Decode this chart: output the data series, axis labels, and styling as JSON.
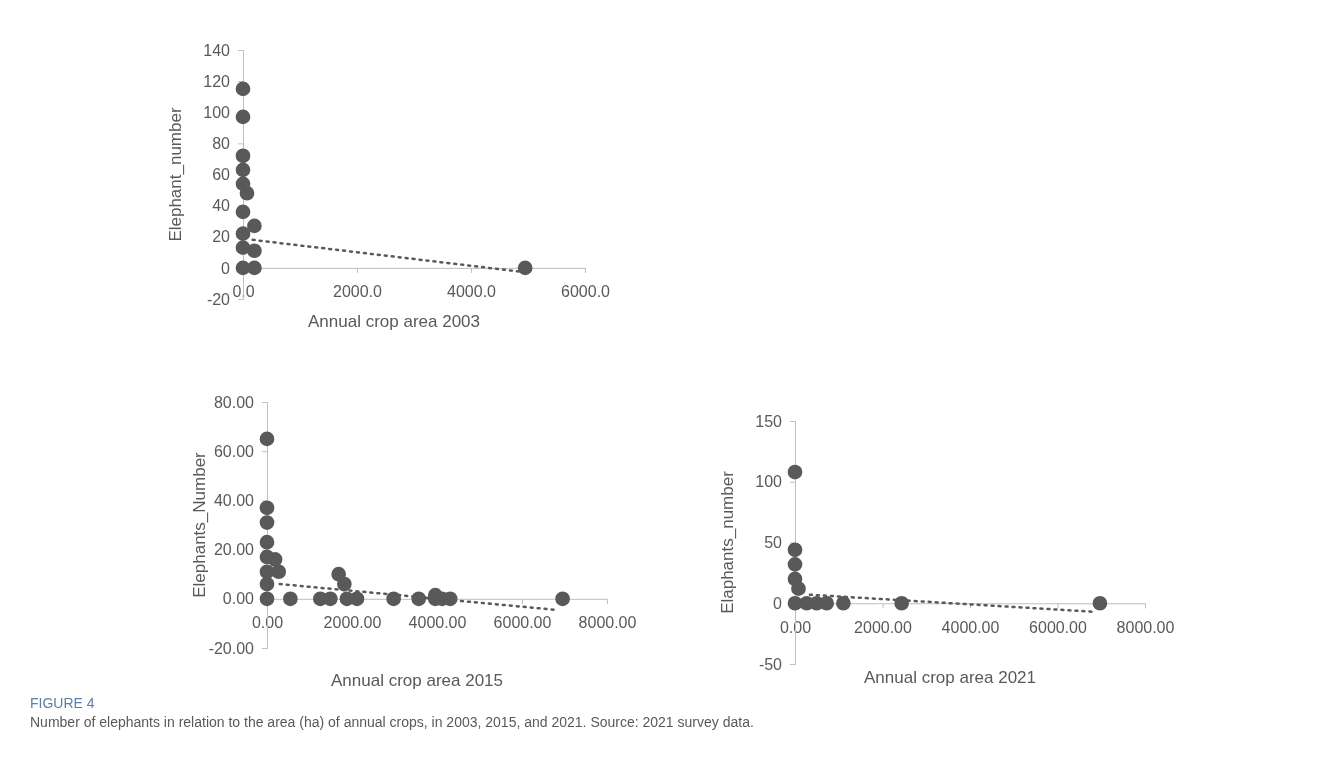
{
  "chart_data": [
    {
      "type": "scatter",
      "xlabel": "Annual crop area 2003",
      "ylabel": "Elephant_number",
      "xlim": [
        0,
        6000
      ],
      "ylim": [
        -20,
        140
      ],
      "xticks": [
        {
          "value": 0,
          "label": "0.0"
        },
        {
          "value": 2000,
          "label": "2000.0"
        },
        {
          "value": 4000,
          "label": "4000.0"
        },
        {
          "value": 6000,
          "label": "6000.0"
        }
      ],
      "yticks": [
        -20,
        0,
        20,
        40,
        60,
        80,
        100,
        120,
        140
      ],
      "marker": "circle",
      "grid": false,
      "series": [
        {
          "type": "scatter",
          "color": "#595959",
          "x": [
            0,
            0,
            0,
            0,
            0,
            0,
            0,
            0,
            0,
            70,
            200,
            200,
            200,
            4950
          ],
          "values": [
            115,
            97,
            72,
            63,
            54,
            36,
            22,
            13,
            0,
            48,
            27,
            11,
            0,
            0
          ]
        },
        {
          "type": "line",
          "color": "#595959",
          "line_style": "dotted",
          "marker": "none",
          "x": [
            170,
            5000
          ],
          "values": [
            18,
            -3
          ]
        }
      ]
    },
    {
      "type": "scatter",
      "xlabel": "Annual crop area 2015",
      "ylabel": "Elephants_Number",
      "xlim": [
        0,
        8000
      ],
      "ylim": [
        -20,
        80
      ],
      "xticks": [
        {
          "value": 0,
          "label": "0.00"
        },
        {
          "value": 2000,
          "label": "2000.00"
        },
        {
          "value": 4000,
          "label": "4000.00"
        },
        {
          "value": 6000,
          "label": "6000.00"
        },
        {
          "value": 8000,
          "label": "8000.00"
        }
      ],
      "yticks": [
        {
          "value": -20,
          "label": "-20.00"
        },
        {
          "value": 0,
          "label": "0.00"
        },
        {
          "value": 20,
          "label": "20.00"
        },
        {
          "value": 40,
          "label": "40.00"
        },
        {
          "value": 60,
          "label": "60.00"
        },
        {
          "value": 80,
          "label": "80.00"
        }
      ],
      "marker": "circle",
      "grid": false,
      "series": [
        {
          "type": "scatter",
          "color": "#595959",
          "x": [
            0,
            0,
            0,
            0,
            0,
            0,
            0,
            0,
            190,
            275,
            550,
            1255,
            1490,
            1880,
            2117,
            2980,
            3570,
            3960,
            4120,
            4310,
            6955,
            1686,
            1820,
            3960
          ],
          "values": [
            65,
            37,
            31,
            23,
            17,
            11,
            6,
            0,
            16,
            11,
            0,
            0,
            0,
            0,
            0,
            0,
            0,
            0,
            0,
            0,
            0,
            10,
            6,
            1.5
          ]
        },
        {
          "type": "line",
          "color": "#595959",
          "line_style": "dotted",
          "marker": "none",
          "x": [
            300,
            6800
          ],
          "values": [
            6,
            -4.5
          ]
        }
      ]
    },
    {
      "type": "scatter",
      "xlabel": "Annual crop area 2021",
      "ylabel": "Elaphants_number",
      "xlim": [
        0,
        8000
      ],
      "ylim": [
        -50,
        150
      ],
      "xticks": [
        {
          "value": 0,
          "label": "0.00"
        },
        {
          "value": 2000,
          "label": "2000.00"
        },
        {
          "value": 4000,
          "label": "4000.00"
        },
        {
          "value": 6000,
          "label": "6000.00"
        },
        {
          "value": 8000,
          "label": "8000.00"
        }
      ],
      "yticks": [
        -50,
        0,
        50,
        100,
        150
      ],
      "marker": "circle",
      "grid": false,
      "annotations": [
        "FIGURE 4",
        "Number of elephants in relation to the area (ha) of annual crops, in 2003, 2015, and 2021. Source: 2021 survey data."
      ],
      "series": [
        {
          "type": "scatter",
          "color": "#595959",
          "x": [
            0,
            0,
            0,
            0,
            0,
            80,
            267,
            495,
            724,
            1105,
            2438,
            6970
          ],
          "values": [
            108,
            44,
            32,
            20,
            0,
            12,
            0,
            0,
            0,
            0,
            0,
            0
          ]
        },
        {
          "type": "line",
          "color": "#595959",
          "line_style": "dotted",
          "marker": "none",
          "x": [
            340,
            6820
          ],
          "values": [
            7,
            -7
          ]
        }
      ]
    }
  ]
}
